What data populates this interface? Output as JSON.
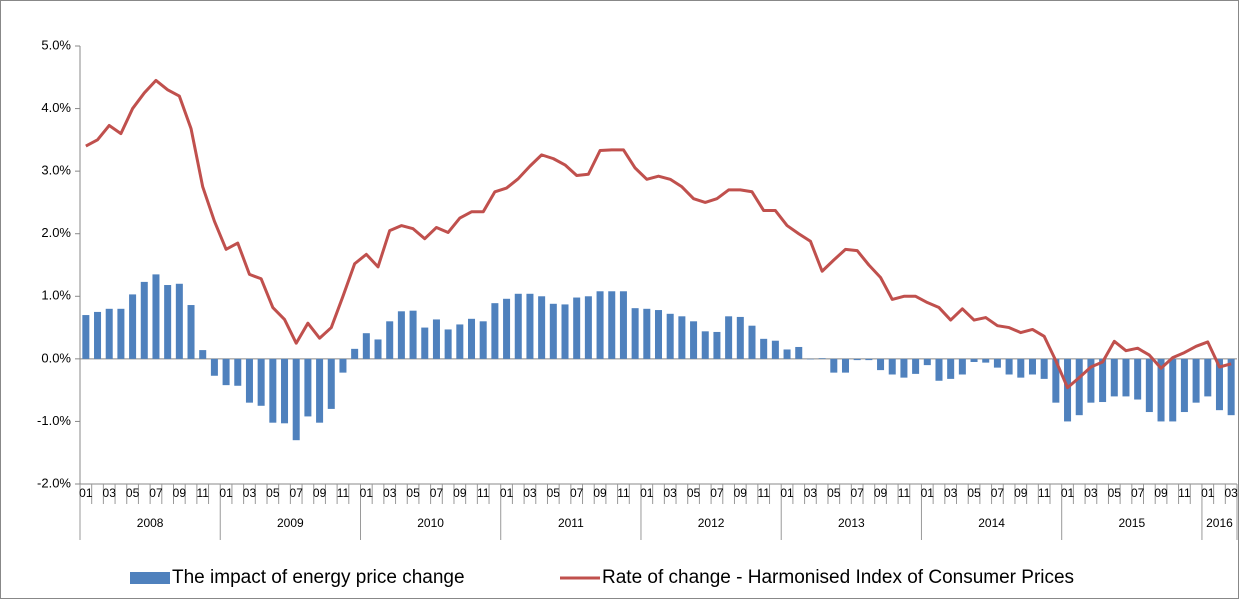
{
  "chart_data": {
    "type": "bar_line",
    "categories": [
      "01",
      null,
      "03",
      null,
      "05",
      null,
      "07",
      null,
      "09",
      null,
      "11",
      null,
      "01",
      null,
      "03",
      null,
      "05",
      null,
      "07",
      null,
      "09",
      null,
      "11",
      null,
      "01",
      null,
      "03",
      null,
      "05",
      null,
      "07",
      null,
      "09",
      null,
      "11",
      null,
      "01",
      null,
      "03",
      null,
      "05",
      null,
      "07",
      null,
      "09",
      null,
      "11",
      null,
      "01",
      null,
      "03",
      null,
      "05",
      null,
      "07",
      null,
      "09",
      null,
      "11",
      null,
      "01",
      null,
      "03",
      null,
      "05",
      null,
      "07",
      null,
      "09",
      null,
      "11",
      null,
      "01",
      null,
      "03",
      null,
      "05",
      null,
      "07",
      null,
      "09",
      null,
      "11",
      null,
      "01",
      null,
      "03",
      null,
      "05",
      null,
      "07",
      null,
      "09",
      null,
      "11",
      null,
      "01",
      null,
      "03"
    ],
    "years": [
      "2008",
      "2009",
      "2010",
      "2011",
      "2012",
      "2013",
      "2014",
      "2015",
      "2016"
    ],
    "series": [
      {
        "name": "The impact of energy price change",
        "kind": "bar",
        "color": "#4f81bd",
        "values": [
          0.7,
          0.75,
          0.8,
          0.8,
          1.03,
          1.23,
          1.35,
          1.18,
          1.2,
          0.86,
          0.14,
          -0.27,
          -0.42,
          -0.43,
          -0.7,
          -0.75,
          -1.02,
          -1.03,
          -1.3,
          -0.92,
          -1.02,
          -0.8,
          -0.22,
          0.16,
          0.41,
          0.31,
          0.6,
          0.76,
          0.77,
          0.5,
          0.63,
          0.47,
          0.55,
          0.64,
          0.6,
          0.89,
          0.96,
          1.04,
          1.04,
          1.0,
          0.88,
          0.87,
          0.98,
          1.0,
          1.08,
          1.08,
          1.08,
          0.81,
          0.8,
          0.78,
          0.72,
          0.68,
          0.6,
          0.44,
          0.43,
          0.68,
          0.67,
          0.53,
          0.32,
          0.29,
          0.15,
          0.19,
          0.0,
          0.01,
          -0.22,
          -0.22,
          -0.02,
          -0.02,
          -0.18,
          -0.25,
          -0.3,
          -0.24,
          -0.1,
          -0.35,
          -0.32,
          -0.25,
          -0.05,
          -0.06,
          -0.14,
          -0.25,
          -0.3,
          -0.25,
          -0.32,
          -0.7,
          -1.0,
          -0.9,
          -0.7,
          -0.69,
          -0.6,
          -0.6,
          -0.65,
          -0.85,
          -1.0,
          -1.0,
          -0.85,
          -0.7,
          -0.6,
          -0.82,
          -0.9
        ]
      },
      {
        "name": "Rate of change - Harmonised Index of Consumer Prices",
        "kind": "line",
        "color": "#c0504d",
        "values": [
          3.4,
          3.5,
          3.73,
          3.6,
          4.0,
          4.25,
          4.45,
          4.3,
          4.2,
          3.68,
          2.75,
          2.2,
          1.75,
          1.85,
          1.35,
          1.28,
          0.82,
          0.63,
          0.25,
          0.57,
          0.33,
          0.5,
          1.0,
          1.52,
          1.67,
          1.47,
          2.05,
          2.13,
          2.08,
          1.92,
          2.1,
          2.02,
          2.25,
          2.35,
          2.35,
          2.67,
          2.73,
          2.88,
          3.08,
          3.26,
          3.2,
          3.1,
          2.93,
          2.95,
          3.33,
          3.34,
          3.34,
          3.05,
          2.87,
          2.92,
          2.87,
          2.75,
          2.56,
          2.5,
          2.56,
          2.7,
          2.7,
          2.67,
          2.37,
          2.37,
          2.13,
          2.0,
          1.88,
          1.4,
          1.58,
          1.75,
          1.73,
          1.5,
          1.3,
          0.95,
          1.0,
          1.0,
          0.9,
          0.82,
          0.62,
          0.8,
          0.62,
          0.66,
          0.53,
          0.5,
          0.42,
          0.47,
          0.36,
          -0.03,
          -0.46,
          -0.3,
          -0.13,
          -0.05,
          0.28,
          0.13,
          0.17,
          0.06,
          -0.15,
          0.02,
          0.1,
          0.2,
          0.27,
          -0.13,
          -0.08
        ]
      }
    ],
    "ylim": [
      -2,
      5
    ],
    "yticks": [
      {
        "value": -2,
        "label": "-2.0%"
      },
      {
        "value": -1,
        "label": "-1.0%"
      },
      {
        "value": 0,
        "label": "0.0%"
      },
      {
        "value": 1,
        "label": "1.0%"
      },
      {
        "value": 2,
        "label": "2.0%"
      },
      {
        "value": 3,
        "label": "3.0%"
      },
      {
        "value": 4,
        "label": "4.0%"
      },
      {
        "value": 5,
        "label": "5.0%"
      }
    ],
    "grid": false,
    "legend": "bottom"
  }
}
